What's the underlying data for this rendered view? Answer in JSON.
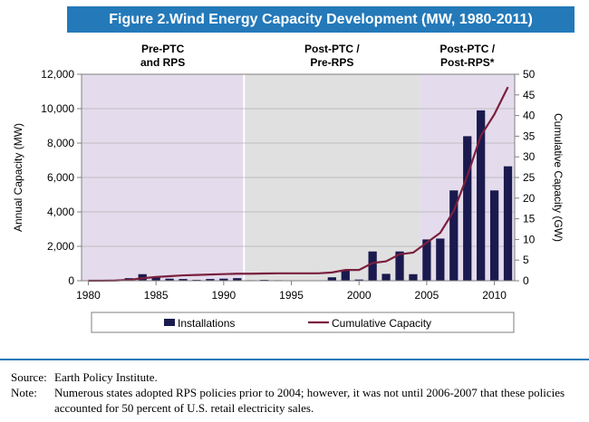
{
  "figure": {
    "title": "Figure 2.Wind Energy Capacity Development (MW, 1980-2011)"
  },
  "footer": {
    "source_label": "Source:",
    "source_text": "Earth Policy Institute.",
    "note_label": "Note:",
    "note_text": "Numerous states adopted RPS policies prior to 2004; however, it was not until 2006-2007 that these policies accounted for 50 percent of U.S. retail electricity sales."
  },
  "colors": {
    "title_bg": "#2479b9",
    "bar_fill": "#1a1a4e",
    "line": "#7a1f3d",
    "period1_bg": "#e4dcec",
    "period2_bg": "#e0e0e0",
    "period3_bg": "#e4dcec"
  },
  "chart_data": {
    "type": "bar",
    "x": [
      1980,
      1981,
      1982,
      1983,
      1984,
      1985,
      1986,
      1987,
      1988,
      1989,
      1990,
      1991,
      1992,
      1993,
      1994,
      1995,
      1996,
      1997,
      1998,
      1999,
      2000,
      2001,
      2002,
      2003,
      2004,
      2005,
      2006,
      2007,
      2008,
      2009,
      2010,
      2011
    ],
    "series": [
      {
        "name": "Installations",
        "type": "bar",
        "axis": "left",
        "values": [
          10,
          20,
          50,
          150,
          380,
          200,
          120,
          100,
          50,
          100,
          120,
          150,
          30,
          50,
          30,
          20,
          20,
          20,
          200,
          630,
          70,
          1700,
          400,
          1700,
          380,
          2400,
          2450,
          5250,
          8400,
          9900,
          5250,
          6650
        ]
      },
      {
        "name": "Cumulative Capacity",
        "type": "line",
        "axis": "right",
        "values": [
          0,
          0.01,
          0.05,
          0.2,
          0.6,
          0.9,
          1.1,
          1.3,
          1.4,
          1.5,
          1.6,
          1.7,
          1.7,
          1.75,
          1.8,
          1.8,
          1.8,
          1.8,
          2.0,
          2.6,
          2.6,
          4.3,
          4.7,
          6.4,
          6.8,
          9.2,
          11.6,
          16.9,
          25.4,
          35.1,
          40.3,
          46.9
        ]
      }
    ],
    "ylabel": "Annual Capacity (MW)",
    "y2label": "Cumulative Capacity (GW)",
    "ylim": [
      0,
      12000
    ],
    "y2lim": [
      0,
      50
    ],
    "yticks": [
      0,
      2000,
      4000,
      6000,
      8000,
      10000,
      12000
    ],
    "ytick_labels": [
      "0",
      "2,000",
      "4,000",
      "6,000",
      "8,000",
      "10,000",
      "12,000"
    ],
    "y2ticks": [
      0,
      5,
      10,
      15,
      20,
      25,
      30,
      35,
      40,
      45,
      50
    ],
    "xticks": [
      1980,
      1985,
      1990,
      1995,
      2000,
      2005,
      2010
    ],
    "xlim": [
      1979.5,
      2011.5
    ],
    "periods": [
      {
        "label_line1": "Pre-PTC",
        "label_line2": "and RPS",
        "start": 1979.5,
        "end": 1991.5
      },
      {
        "label_line1": "Post-PTC /",
        "label_line2": "Pre-RPS",
        "start": 1991.5,
        "end": 2004.5
      },
      {
        "label_line1": "Post-PTC /",
        "label_line2": "Post-RPS*",
        "start": 2004.5,
        "end": 2011.5
      }
    ],
    "legend": {
      "position": "bottom"
    },
    "grid": true
  }
}
